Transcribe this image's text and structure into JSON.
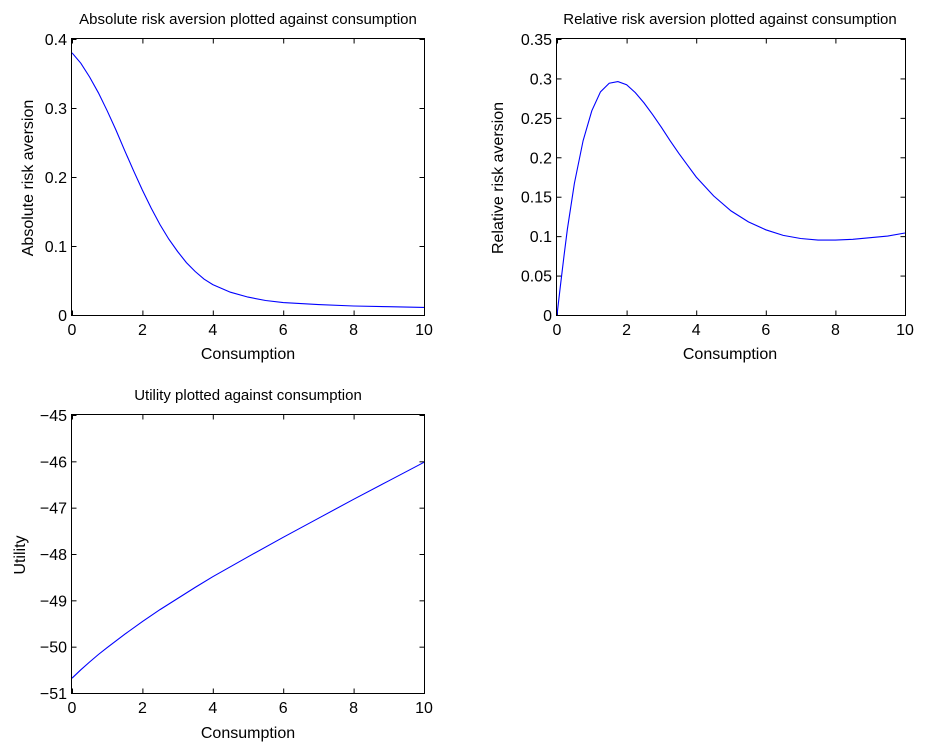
{
  "chart_data": [
    {
      "type": "line",
      "title": "Absolute risk aversion plotted against consumption",
      "xlabel": "Consumption",
      "ylabel": "Absolute risk aversion",
      "xlim": [
        0,
        10
      ],
      "ylim": [
        0,
        0.4
      ],
      "xticks": [
        0,
        2,
        4,
        6,
        8,
        10
      ],
      "xtick_labels": [
        "0",
        "2",
        "4",
        "6",
        "8",
        "10"
      ],
      "yticks": [
        0,
        0.1,
        0.2,
        0.3,
        0.4
      ],
      "ytick_labels": [
        "0",
        "0.1",
        "0.2",
        "0.3",
        "0.4"
      ],
      "grid": false,
      "series": [
        {
          "color": "#0000ff",
          "x": [
            0,
            0.25,
            0.5,
            0.75,
            1,
            1.25,
            1.5,
            1.75,
            2,
            2.25,
            2.5,
            2.75,
            3,
            3.25,
            3.5,
            3.75,
            4,
            4.5,
            5,
            5.5,
            6,
            7,
            8,
            9,
            10
          ],
          "y": [
            0.38,
            0.365,
            0.345,
            0.322,
            0.296,
            0.268,
            0.238,
            0.209,
            0.181,
            0.155,
            0.131,
            0.11,
            0.092,
            0.076,
            0.063,
            0.052,
            0.044,
            0.033,
            0.026,
            0.021,
            0.018,
            0.015,
            0.013,
            0.012,
            0.011
          ]
        }
      ]
    },
    {
      "type": "line",
      "title": "Relative risk aversion plotted against consumption",
      "xlabel": "Consumption",
      "ylabel": "Relative risk aversion",
      "xlim": [
        0,
        10
      ],
      "ylim": [
        0,
        0.35
      ],
      "xticks": [
        0,
        2,
        4,
        6,
        8,
        10
      ],
      "xtick_labels": [
        "0",
        "2",
        "4",
        "6",
        "8",
        "10"
      ],
      "yticks": [
        0,
        0.05,
        0.1,
        0.15,
        0.2,
        0.25,
        0.3,
        0.35
      ],
      "ytick_labels": [
        "0",
        "0.05",
        "0.1",
        "0.15",
        "0.2",
        "0.25",
        "0.3",
        "0.35"
      ],
      "grid": false,
      "series": [
        {
          "color": "#0000ff",
          "x": [
            0,
            0.1,
            0.2,
            0.3,
            0.5,
            0.75,
            1,
            1.25,
            1.5,
            1.75,
            2,
            2.25,
            2.5,
            2.75,
            3,
            3.25,
            3.5,
            3.75,
            4,
            4.5,
            5,
            5.5,
            6,
            6.5,
            7,
            7.5,
            8,
            8.5,
            9,
            9.5,
            10
          ],
          "y": [
            0,
            0.038,
            0.075,
            0.109,
            0.167,
            0.221,
            0.259,
            0.283,
            0.294,
            0.296,
            0.292,
            0.282,
            0.269,
            0.254,
            0.238,
            0.221,
            0.205,
            0.19,
            0.175,
            0.151,
            0.132,
            0.118,
            0.108,
            0.101,
            0.097,
            0.095,
            0.095,
            0.096,
            0.098,
            0.1,
            0.104
          ]
        }
      ]
    },
    {
      "type": "line",
      "title": "Utility plotted against consumption",
      "xlabel": "Consumption",
      "ylabel": "Utility",
      "xlim": [
        0,
        10
      ],
      "ylim": [
        -51,
        -45
      ],
      "xticks": [
        0,
        2,
        4,
        6,
        8,
        10
      ],
      "xtick_labels": [
        "0",
        "2",
        "4",
        "6",
        "8",
        "10"
      ],
      "yticks": [
        -51,
        -50,
        -49,
        -48,
        -47,
        -46,
        -45
      ],
      "ytick_labels": [
        "−51",
        "−50",
        "−49",
        "−48",
        "−47",
        "−46",
        "−45"
      ],
      "grid": false,
      "series": [
        {
          "color": "#0000ff",
          "x": [
            0,
            0.25,
            0.5,
            0.75,
            1,
            1.5,
            2,
            2.5,
            3,
            3.5,
            4,
            5,
            6,
            7,
            8,
            9,
            10
          ],
          "y": [
            -50.68,
            -50.5,
            -50.33,
            -50.17,
            -50.02,
            -49.73,
            -49.46,
            -49.2,
            -48.96,
            -48.72,
            -48.49,
            -48.06,
            -47.64,
            -47.23,
            -46.82,
            -46.42,
            -46.02
          ]
        }
      ]
    }
  ]
}
